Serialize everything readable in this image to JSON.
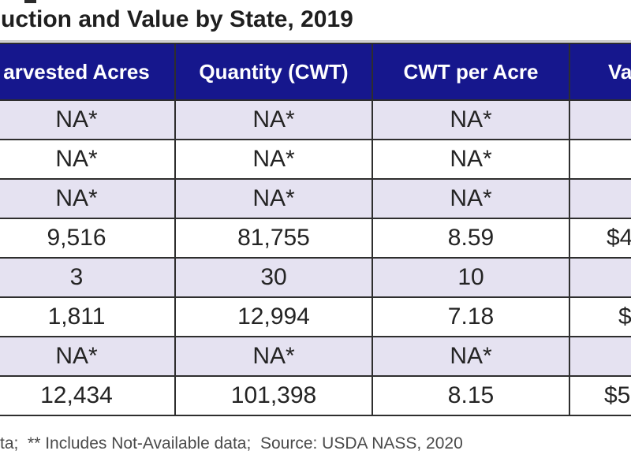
{
  "chart_data": {
    "type": "table",
    "title": "uction and Value by State, 2019",
    "columns": [
      "arvested Acres",
      "Quantity (CWT)",
      "CWT per Acre",
      "Va"
    ],
    "rows": [
      [
        "NA*",
        "NA*",
        "NA*",
        ""
      ],
      [
        "NA*",
        "NA*",
        "NA*",
        ""
      ],
      [
        "NA*",
        "NA*",
        "NA*",
        ""
      ],
      [
        "9,516",
        "81,755",
        "8.59",
        "$4"
      ],
      [
        "3",
        "30",
        "10",
        ""
      ],
      [
        "1,811",
        "12,994",
        "7.18",
        "$"
      ],
      [
        "NA*",
        "NA*",
        "NA*",
        ""
      ],
      [
        "12,434",
        "101,398",
        "8.15",
        "$5"
      ]
    ],
    "footnote": "ta;  ** Includes Not-Available data;  Source: USDA NASS, 2020",
    "layout_hints": {
      "shaded_row_pattern": "odd rows shaded lavender",
      "header_style": "dark navy with white bold text",
      "crop_note": "figure cropped on left and right edges"
    }
  },
  "colors": {
    "header_bg": "#16178d",
    "header_text": "#ffffff",
    "shaded_row_bg": "#e5e2f1",
    "white_row_bg": "#ffffff",
    "border": "#2e2e2e",
    "title_text": "#1f1f1f",
    "title_rule": "#c8c8c8",
    "footnote_text": "#4a4a4a"
  }
}
